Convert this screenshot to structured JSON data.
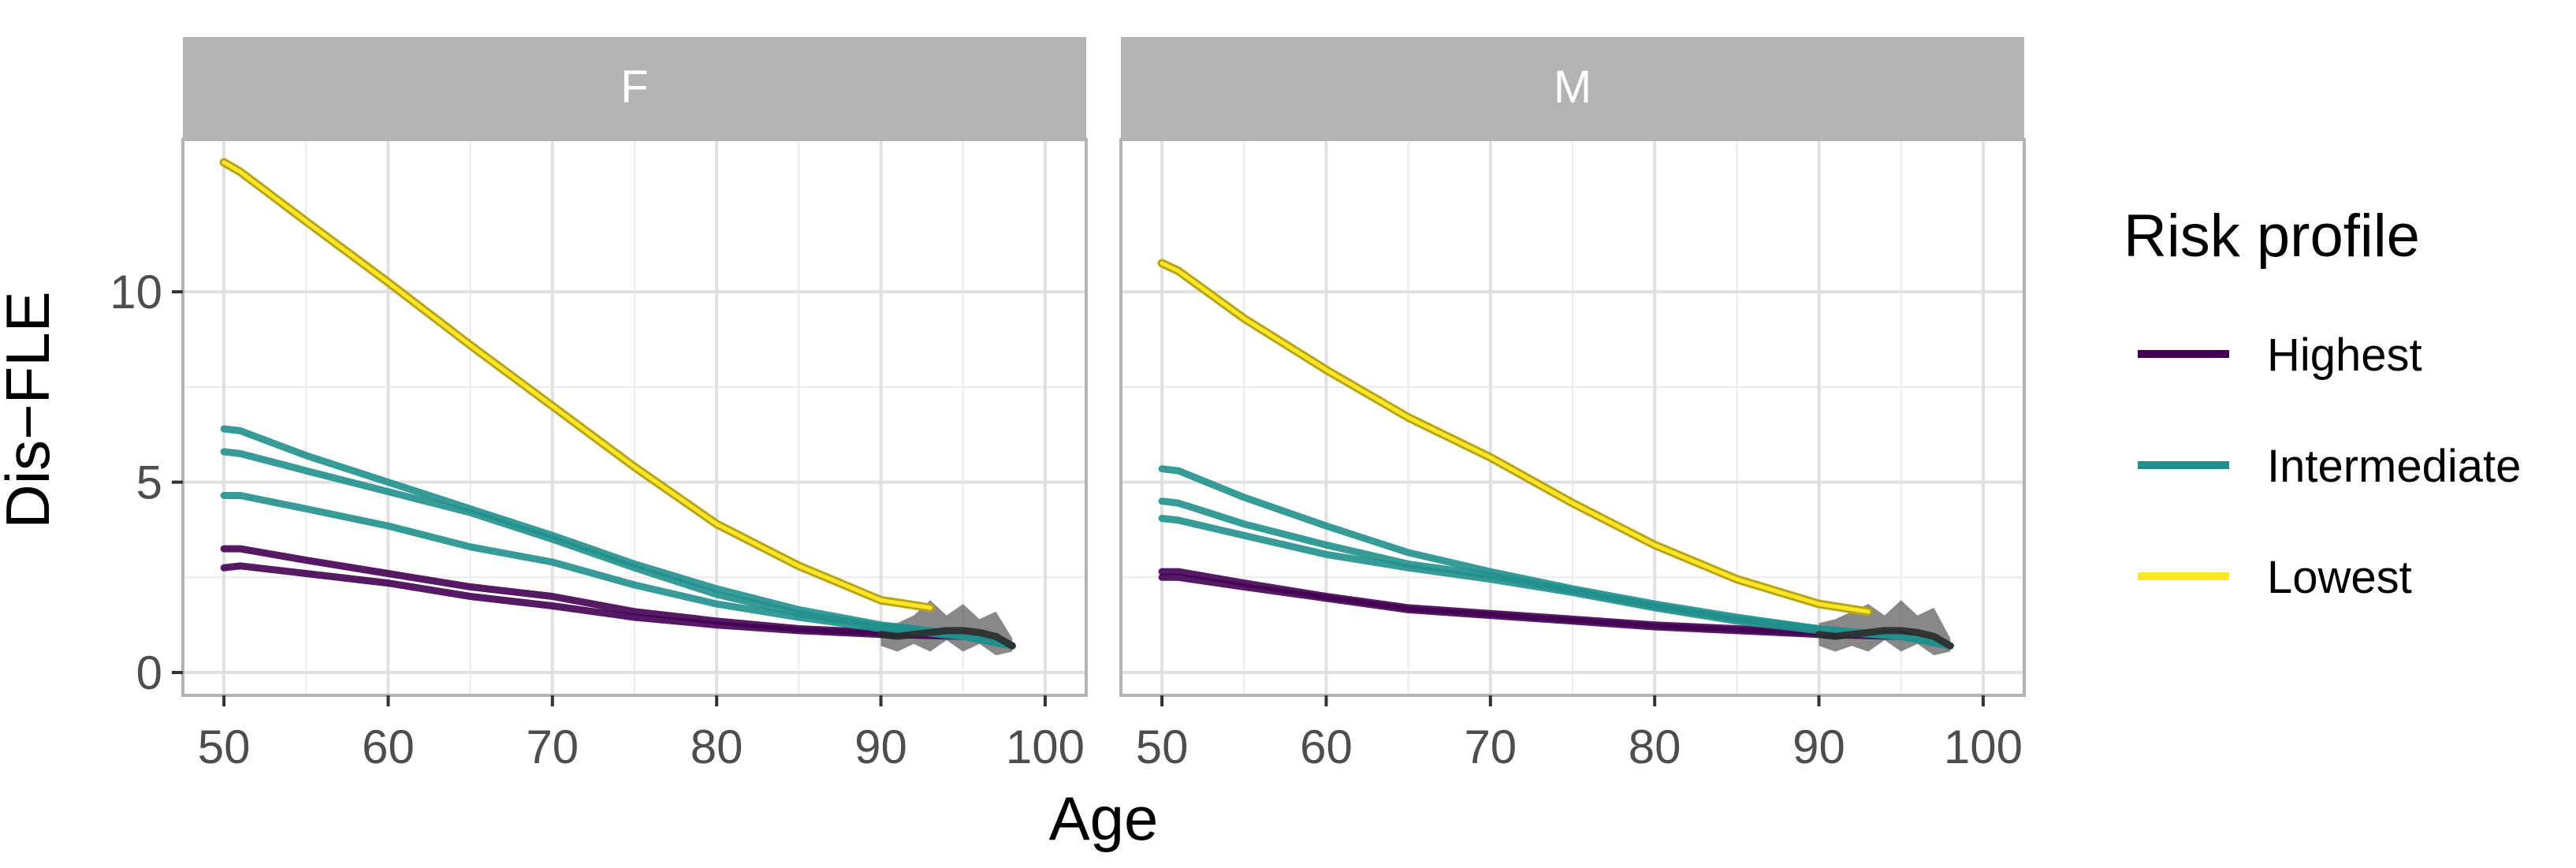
{
  "chart_data": {
    "type": "line",
    "facet_variable": "sex",
    "facets": [
      {
        "label": "F",
        "series": [
          {
            "name": "Highest",
            "group": "Highest",
            "x": [
              50,
              51,
              55,
              60,
              65,
              70,
              75,
              80,
              85,
              90,
              95,
              98
            ],
            "values": [
              3.25,
              3.25,
              2.95,
              2.6,
              2.25,
              2.0,
              1.6,
              1.35,
              1.15,
              1.05,
              1.0,
              0.7
            ]
          },
          {
            "name": "Highest",
            "group": "Highest",
            "x": [
              50,
              51,
              55,
              60,
              65,
              70,
              75,
              80,
              85,
              90,
              95,
              98
            ],
            "values": [
              2.75,
              2.8,
              2.6,
              2.35,
              2.0,
              1.75,
              1.45,
              1.25,
              1.1,
              1.0,
              0.95,
              0.7
            ]
          },
          {
            "name": "Intermediate",
            "group": "Intermediate",
            "x": [
              50,
              51,
              55,
              60,
              65,
              70,
              75,
              80,
              85,
              90,
              95,
              98
            ],
            "values": [
              6.4,
              6.35,
              5.7,
              5.0,
              4.3,
              3.6,
              2.85,
              2.2,
              1.65,
              1.25,
              1.0,
              0.7
            ]
          },
          {
            "name": "Intermediate",
            "group": "Intermediate",
            "x": [
              50,
              51,
              55,
              60,
              65,
              70,
              75,
              80,
              85,
              90,
              95,
              98
            ],
            "values": [
              5.8,
              5.75,
              5.3,
              4.75,
              4.2,
              3.5,
              2.75,
              2.05,
              1.55,
              1.2,
              0.95,
              0.7
            ]
          },
          {
            "name": "Intermediate",
            "group": "Intermediate",
            "x": [
              50,
              51,
              55,
              60,
              65,
              70,
              75,
              80,
              85,
              90,
              95,
              98
            ],
            "values": [
              4.65,
              4.65,
              4.3,
              3.85,
              3.3,
              2.9,
              2.3,
              1.8,
              1.45,
              1.15,
              0.95,
              0.7
            ]
          },
          {
            "name": "Lowest",
            "group": "Lowest",
            "x": [
              50,
              51,
              55,
              60,
              65,
              70,
              75,
              80,
              85,
              90,
              93
            ],
            "values": [
              13.4,
              13.15,
              11.85,
              10.25,
              8.6,
              7.0,
              5.4,
              3.9,
              2.8,
              1.9,
              1.7
            ]
          },
          {
            "name": "Highest",
            "group": "Sparse",
            "x": [
              90,
              91,
              92,
              93,
              94,
              95,
              96,
              97,
              98
            ],
            "values": [
              1.0,
              0.95,
              1.0,
              1.05,
              1.1,
              1.1,
              1.05,
              0.95,
              0.7
            ]
          }
        ],
        "sparse_band": {
          "x": [
            90,
            91,
            92,
            93,
            94,
            95,
            96,
            97,
            98
          ],
          "upper": [
            1.3,
            1.3,
            1.5,
            1.9,
            1.5,
            1.8,
            1.4,
            1.6,
            0.9
          ],
          "lower": [
            0.7,
            0.55,
            0.75,
            0.55,
            0.85,
            0.55,
            0.75,
            0.45,
            0.55
          ]
        }
      },
      {
        "label": "M",
        "series": [
          {
            "name": "Highest",
            "group": "Highest",
            "x": [
              50,
              51,
              55,
              60,
              65,
              70,
              75,
              80,
              85,
              90,
              95,
              98
            ],
            "values": [
              2.65,
              2.65,
              2.35,
              2.0,
              1.7,
              1.55,
              1.4,
              1.25,
              1.15,
              1.05,
              1.0,
              0.7
            ]
          },
          {
            "name": "Highest",
            "group": "Highest",
            "x": [
              50,
              51,
              55,
              60,
              65,
              70,
              75,
              80,
              85,
              90,
              95,
              98
            ],
            "values": [
              2.5,
              2.5,
              2.25,
              1.95,
              1.65,
              1.5,
              1.35,
              1.2,
              1.1,
              1.0,
              0.95,
              0.7
            ]
          },
          {
            "name": "Intermediate",
            "group": "Intermediate",
            "x": [
              50,
              51,
              55,
              60,
              65,
              70,
              75,
              80,
              85,
              90,
              95,
              98
            ],
            "values": [
              5.35,
              5.3,
              4.6,
              3.85,
              3.15,
              2.65,
              2.2,
              1.8,
              1.45,
              1.15,
              0.95,
              0.7
            ]
          },
          {
            "name": "Intermediate",
            "group": "Intermediate",
            "x": [
              50,
              51,
              55,
              60,
              65,
              70,
              75,
              80,
              85,
              90,
              95,
              98
            ],
            "values": [
              4.5,
              4.45,
              3.9,
              3.35,
              2.85,
              2.55,
              2.15,
              1.75,
              1.4,
              1.15,
              0.95,
              0.7
            ]
          },
          {
            "name": "Intermediate",
            "group": "Intermediate",
            "x": [
              50,
              51,
              55,
              60,
              65,
              70,
              75,
              80,
              85,
              90,
              95,
              98
            ],
            "values": [
              4.05,
              4.0,
              3.6,
              3.1,
              2.75,
              2.45,
              2.1,
              1.7,
              1.35,
              1.1,
              0.95,
              0.7
            ]
          },
          {
            "name": "Lowest",
            "group": "Lowest",
            "x": [
              50,
              51,
              55,
              60,
              65,
              70,
              75,
              80,
              85,
              90,
              93
            ],
            "values": [
              10.75,
              10.55,
              9.3,
              7.95,
              6.7,
              5.65,
              4.45,
              3.35,
              2.45,
              1.8,
              1.6
            ]
          },
          {
            "name": "Highest",
            "group": "Sparse",
            "x": [
              90,
              91,
              92,
              93,
              94,
              95,
              96,
              97,
              98
            ],
            "values": [
              1.0,
              0.95,
              1.0,
              1.05,
              1.1,
              1.1,
              1.05,
              0.95,
              0.7
            ]
          }
        ],
        "sparse_band": {
          "x": [
            90,
            91,
            92,
            93,
            94,
            95,
            96,
            97,
            98
          ],
          "upper": [
            1.3,
            1.4,
            1.6,
            1.8,
            1.5,
            1.9,
            1.5,
            1.7,
            0.9
          ],
          "lower": [
            0.7,
            0.55,
            0.7,
            0.55,
            0.85,
            0.55,
            0.75,
            0.45,
            0.55
          ]
        }
      }
    ],
    "xlabel": "Age",
    "ylabel": "Dis−FLE",
    "xlim": [
      47.5,
      102.5
    ],
    "ylim": [
      -0.6,
      14.0
    ],
    "x_ticks": [
      50,
      60,
      70,
      80,
      90,
      100
    ],
    "y_ticks": [
      0,
      5,
      10
    ],
    "grid": true,
    "legend": {
      "title": "Risk profile",
      "position": "right",
      "entries": [
        {
          "label": "Highest",
          "color": "#440154"
        },
        {
          "label": "Intermediate",
          "color": "#21908C"
        },
        {
          "label": "Lowest",
          "color": "#FDE725"
        }
      ]
    },
    "colors": {
      "Highest": "#440154",
      "Intermediate": "#21908C",
      "Lowest": "#FDE725",
      "Sparse": "#2b2b2b",
      "strip_background": "#B3B3B3",
      "grid": "#EBEBEB",
      "panel_border": "#B3B3B3"
    }
  }
}
